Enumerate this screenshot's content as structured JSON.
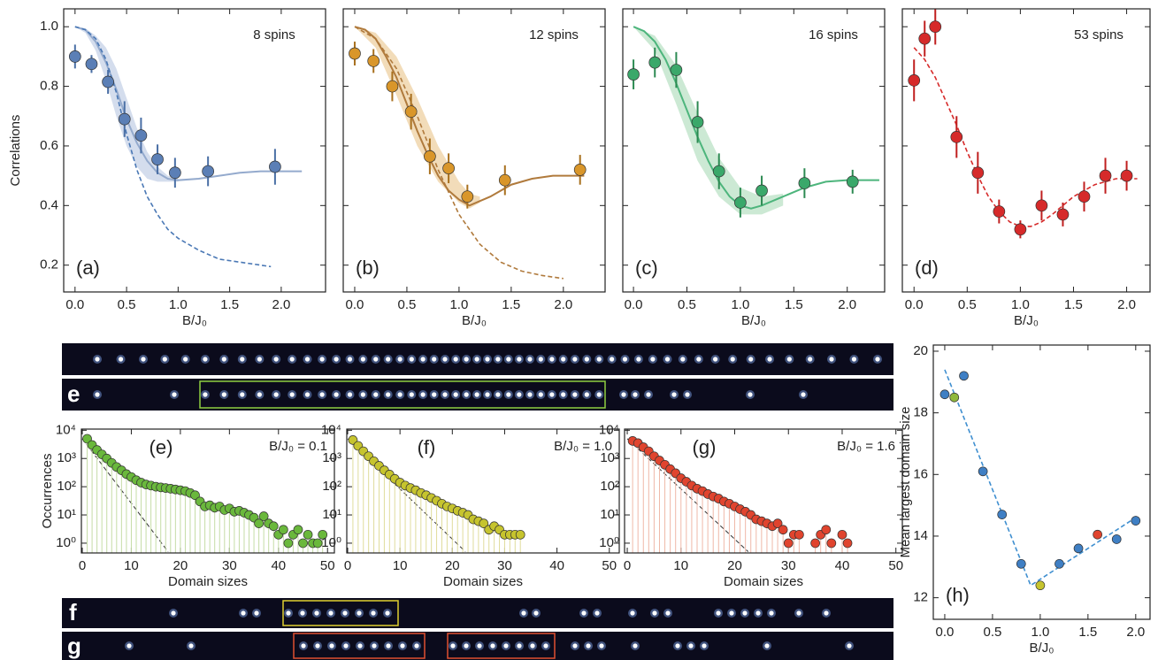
{
  "chart_data": [
    {
      "type": "scatter",
      "label": "(a)",
      "annotation": "8 spins",
      "xlabel": "B/J₀",
      "ylabel": "Correlations",
      "xlim": [
        -0.11,
        2.43
      ],
      "ylim": [
        0.11,
        1.06
      ],
      "xticks": [
        {
          "value": 0,
          "label": "0.0"
        },
        0.5,
        {
          "value": 1,
          "label": "1.0"
        },
        1.5,
        {
          "value": 2,
          "label": "2.0"
        }
      ],
      "yticks": [
        0.2,
        0.4,
        0.6,
        0.8,
        {
          "value": 1,
          "label": "1.0"
        }
      ],
      "color": "#5b7fb6",
      "error_color": "#4a6fa5",
      "curve_color": "#94aacd",
      "band_color": "#c9d5e8",
      "dashed_color": "#4a78b5",
      "points": {
        "x": [
          0,
          0.16,
          0.32,
          0.48,
          0.64,
          0.8,
          0.97,
          1.29,
          1.94
        ],
        "values": [
          0.9,
          0.875,
          0.815,
          0.69,
          0.635,
          0.555,
          0.51,
          0.515,
          0.53
        ],
        "errors": [
          0.04,
          0.03,
          0.04,
          0.06,
          0.06,
          0.05,
          0.05,
          0.05,
          0.06
        ]
      },
      "band": {
        "x": [
          0,
          0.1,
          0.2,
          0.3,
          0.4,
          0.5,
          0.6,
          0.7,
          0.8,
          0.9,
          1.0
        ],
        "upper": [
          1.0,
          0.995,
          0.97,
          0.93,
          0.86,
          0.76,
          0.66,
          0.58,
          0.53,
          0.5,
          0.49
        ],
        "lower": [
          1.0,
          0.98,
          0.92,
          0.82,
          0.7,
          0.6,
          0.53,
          0.49,
          0.48,
          0.48,
          0.48
        ]
      },
      "curve": {
        "x": [
          0,
          0.1,
          0.2,
          0.3,
          0.4,
          0.5,
          0.6,
          0.7,
          0.8,
          0.9,
          1.0,
          1.2,
          1.4,
          1.6,
          1.8,
          2.0,
          2.2
        ],
        "values": [
          1.0,
          0.99,
          0.95,
          0.88,
          0.79,
          0.69,
          0.61,
          0.55,
          0.51,
          0.49,
          0.485,
          0.49,
          0.5,
          0.51,
          0.515,
          0.515,
          0.515
        ]
      },
      "dashed": {
        "x": [
          0,
          0.1,
          0.2,
          0.3,
          0.4,
          0.5,
          0.6,
          0.7,
          0.8,
          0.9,
          1.0,
          1.2,
          1.4,
          1.6,
          1.9
        ],
        "values": [
          1.0,
          0.99,
          0.96,
          0.89,
          0.78,
          0.64,
          0.52,
          0.43,
          0.37,
          0.32,
          0.29,
          0.25,
          0.22,
          0.21,
          0.195
        ]
      }
    },
    {
      "type": "scatter",
      "label": "(b)",
      "annotation": "12 spins",
      "xlabel": "B/J₀",
      "xlim": [
        -0.11,
        2.4
      ],
      "ylim": [
        0.11,
        1.06
      ],
      "xticks": [
        {
          "value": 0,
          "label": "0.0"
        },
        0.5,
        {
          "value": 1,
          "label": "1.0"
        },
        1.5,
        {
          "value": 2,
          "label": "2.0"
        }
      ],
      "color": "#d9962a",
      "error_color": "#a8701e",
      "curve_color": "#b07a3c",
      "band_color": "#efd3a8",
      "dashed_color": "#b07a3c",
      "points": {
        "x": [
          0,
          0.18,
          0.36,
          0.54,
          0.72,
          0.9,
          1.08,
          1.44,
          2.16
        ],
        "values": [
          0.91,
          0.885,
          0.8,
          0.715,
          0.565,
          0.525,
          0.43,
          0.485,
          0.52
        ],
        "errors": [
          0.04,
          0.04,
          0.05,
          0.06,
          0.06,
          0.05,
          0.04,
          0.05,
          0.05
        ]
      },
      "band": {
        "x": [
          0,
          0.2,
          0.4,
          0.6,
          0.8,
          1.0,
          1.1,
          1.2
        ],
        "upper": [
          1.0,
          0.98,
          0.9,
          0.76,
          0.6,
          0.48,
          0.44,
          0.43
        ],
        "lower": [
          1.0,
          0.93,
          0.77,
          0.6,
          0.48,
          0.41,
          0.39,
          0.41
        ]
      },
      "curve": {
        "x": [
          0,
          0.1,
          0.2,
          0.3,
          0.4,
          0.5,
          0.6,
          0.7,
          0.8,
          0.9,
          1.0,
          1.1,
          1.3,
          1.5,
          1.7,
          1.9,
          2.1,
          2.2
        ],
        "values": [
          1.0,
          0.99,
          0.96,
          0.9,
          0.83,
          0.74,
          0.65,
          0.57,
          0.5,
          0.45,
          0.42,
          0.4,
          0.43,
          0.47,
          0.49,
          0.5,
          0.5,
          0.5
        ]
      },
      "dashed": {
        "x": [
          0,
          0.2,
          0.4,
          0.6,
          0.8,
          1.0,
          1.2,
          1.4,
          1.6,
          1.8,
          2.0
        ],
        "values": [
          1.0,
          0.96,
          0.86,
          0.7,
          0.52,
          0.37,
          0.27,
          0.21,
          0.18,
          0.165,
          0.155
        ]
      }
    },
    {
      "type": "scatter",
      "label": "(c)",
      "annotation": "16 spins",
      "xlabel": "B/J₀",
      "xlim": [
        -0.1,
        2.35
      ],
      "ylim": [
        0.11,
        1.06
      ],
      "xticks": [
        {
          "value": 0,
          "label": "0.0"
        },
        0.5,
        {
          "value": 1,
          "label": "1.0"
        },
        1.5,
        {
          "value": 2,
          "label": "2.0"
        }
      ],
      "color": "#3aa86a",
      "error_color": "#2c8a52",
      "curve_color": "#4db57c",
      "band_color": "#bfe3c9",
      "points": {
        "x": [
          0,
          0.2,
          0.4,
          0.6,
          0.8,
          1.0,
          1.2,
          1.6,
          2.05
        ],
        "values": [
          0.84,
          0.88,
          0.855,
          0.68,
          0.515,
          0.41,
          0.45,
          0.475,
          0.48
        ],
        "errors": [
          0.05,
          0.05,
          0.06,
          0.07,
          0.06,
          0.05,
          0.05,
          0.05,
          0.04
        ]
      },
      "band": {
        "x": [
          0,
          0.2,
          0.4,
          0.6,
          0.8,
          1.0,
          1.2,
          1.4
        ],
        "upper": [
          1.0,
          0.97,
          0.87,
          0.71,
          0.56,
          0.46,
          0.43,
          0.44
        ],
        "lower": [
          1.0,
          0.92,
          0.74,
          0.55,
          0.43,
          0.37,
          0.37,
          0.4
        ]
      },
      "curve": {
        "x": [
          0,
          0.1,
          0.2,
          0.3,
          0.4,
          0.5,
          0.6,
          0.7,
          0.8,
          0.9,
          1.0,
          1.1,
          1.2,
          1.4,
          1.6,
          1.8,
          2.0,
          2.2,
          2.3
        ],
        "values": [
          1.0,
          0.985,
          0.95,
          0.89,
          0.81,
          0.72,
          0.63,
          0.55,
          0.48,
          0.43,
          0.4,
          0.39,
          0.4,
          0.43,
          0.46,
          0.48,
          0.485,
          0.485,
          0.485
        ]
      }
    },
    {
      "type": "scatter",
      "label": "(d)",
      "annotation": "53 spins",
      "xlabel": "B/J₀",
      "xlim": [
        -0.11,
        2.22
      ],
      "ylim": [
        0.11,
        1.06
      ],
      "xticks": [
        {
          "value": 0,
          "label": "0.0"
        },
        0.5,
        {
          "value": 1,
          "label": "1.0"
        },
        1.5,
        {
          "value": 2,
          "label": "2.0"
        }
      ],
      "color": "#d62a2a",
      "error_color": "#c01f1f",
      "dashed_color": "#d62a2a",
      "points": {
        "x": [
          0,
          0.1,
          0.2,
          0.4,
          0.6,
          0.8,
          1.0,
          1.2,
          1.4,
          1.6,
          1.8,
          2.0
        ],
        "values": [
          0.82,
          0.96,
          1.0,
          0.63,
          0.51,
          0.38,
          0.32,
          0.4,
          0.37,
          0.43,
          0.5,
          0.5
        ],
        "errors": [
          0.07,
          0.06,
          0.06,
          0.07,
          0.07,
          0.04,
          0.03,
          0.05,
          0.04,
          0.05,
          0.06,
          0.05
        ]
      },
      "dashed": {
        "x": [
          0,
          0.1,
          0.2,
          0.3,
          0.4,
          0.5,
          0.6,
          0.7,
          0.8,
          0.9,
          1.0,
          1.1,
          1.2,
          1.3,
          1.4,
          1.5,
          1.6,
          1.7,
          1.8,
          1.9,
          2.0,
          2.1
        ],
        "values": [
          0.93,
          0.89,
          0.83,
          0.75,
          0.67,
          0.58,
          0.5,
          0.43,
          0.38,
          0.345,
          0.33,
          0.33,
          0.345,
          0.37,
          0.4,
          0.43,
          0.45,
          0.47,
          0.48,
          0.49,
          0.49,
          0.49
        ]
      }
    },
    {
      "type": "stem",
      "label": "(e)",
      "annotation": "B/J₀ = 0.1",
      "xlabel": "Domain sizes",
      "ylabel": "Occurrences",
      "log_y": true,
      "xlim": [
        -0.18,
        51.4
      ],
      "ylim": [
        0.45,
        11000
      ],
      "xticks": [
        0,
        10,
        20,
        30,
        40,
        50
      ],
      "yticks": [
        {
          "value": 1,
          "label": "10⁰"
        },
        {
          "value": 10,
          "label": "10¹"
        },
        {
          "value": 100,
          "label": "10²"
        },
        {
          "value": 1000,
          "label": "10³"
        },
        {
          "value": 10000,
          "label": "10⁴"
        }
      ],
      "color": "#6ab83c",
      "stem_color": "#c5dca6",
      "dashed_color": "#333333",
      "points": {
        "x": [
          1,
          2,
          3,
          4,
          5,
          6,
          7,
          8,
          9,
          10,
          11,
          12,
          13,
          14,
          15,
          16,
          17,
          18,
          19,
          20,
          21,
          22,
          23,
          24,
          25,
          26,
          27,
          28,
          29,
          30,
          31,
          32,
          33,
          34,
          35,
          36,
          37,
          38,
          39,
          40,
          41,
          42,
          43,
          44,
          45,
          46,
          47,
          48,
          49
        ],
        "values": [
          5000,
          3000,
          2000,
          1400,
          1000,
          700,
          500,
          380,
          280,
          220,
          170,
          140,
          120,
          110,
          100,
          95,
          90,
          85,
          80,
          75,
          70,
          60,
          50,
          30,
          20,
          22,
          18,
          20,
          15,
          17,
          13,
          14,
          12,
          10,
          8,
          5,
          9,
          5,
          4,
          2,
          3,
          1,
          2,
          3,
          1,
          2,
          1,
          1,
          2
        ]
      },
      "dashed": {
        "x": [
          0,
          17.5
        ],
        "values": [
          5000,
          0.5
        ]
      }
    },
    {
      "type": "stem",
      "label": "(f)",
      "annotation": "B/J₀ = 1.0",
      "xlabel": "Domain sizes",
      "log_y": true,
      "xlim": [
        -0.17,
        51.9
      ],
      "ylim": [
        0.45,
        11000
      ],
      "xticks": [
        0,
        10,
        20,
        30,
        40,
        50
      ],
      "yticks": [
        {
          "value": 1,
          "label": "10⁰"
        },
        {
          "value": 10,
          "label": "10¹"
        },
        {
          "value": 100,
          "label": "10²"
        },
        {
          "value": 1000,
          "label": "10³"
        },
        {
          "value": 10000,
          "label": "10⁴"
        }
      ],
      "color": "#c6c42e",
      "stem_color": "#e0dc9c",
      "dashed_color": "#333333",
      "points": {
        "x": [
          1,
          2,
          3,
          4,
          5,
          6,
          7,
          8,
          9,
          10,
          11,
          12,
          13,
          14,
          15,
          16,
          17,
          18,
          19,
          20,
          21,
          22,
          23,
          24,
          25,
          26,
          27,
          28,
          29,
          30,
          31,
          32,
          33
        ],
        "values": [
          4500,
          2800,
          1800,
          1200,
          800,
          550,
          380,
          270,
          190,
          140,
          110,
          90,
          75,
          60,
          50,
          40,
          32,
          25,
          20,
          17,
          14,
          12,
          10,
          7,
          6,
          5,
          3,
          4,
          3,
          2,
          2,
          2,
          2
        ]
      },
      "dashed": {
        "x": [
          0,
          22.5
        ],
        "values": [
          5000,
          0.5
        ]
      }
    },
    {
      "type": "stem",
      "label": "(g)",
      "annotation": "B/J₀ = 1.6",
      "xlabel": "Domain sizes",
      "log_y": true,
      "xlim": [
        -0.5,
        51.2
      ],
      "ylim": [
        0.45,
        11000
      ],
      "xticks": [
        0,
        10,
        20,
        30,
        40,
        50
      ],
      "yticks": [
        {
          "value": 1,
          "label": "10⁰"
        },
        {
          "value": 10,
          "label": "10¹"
        },
        {
          "value": 100,
          "label": "10²"
        },
        {
          "value": 1000,
          "label": "10³"
        },
        {
          "value": 10000,
          "label": "10⁴"
        }
      ],
      "color": "#e0442e",
      "stem_color": "#efb8a8",
      "dashed_color": "#333333",
      "points": {
        "x": [
          1,
          2,
          3,
          4,
          5,
          6,
          7,
          8,
          9,
          10,
          11,
          12,
          13,
          14,
          15,
          16,
          17,
          18,
          19,
          20,
          21,
          22,
          23,
          24,
          25,
          26,
          27,
          28,
          29,
          30,
          31,
          32,
          35,
          36,
          37,
          38,
          40,
          41
        ],
        "values": [
          4200,
          3500,
          2500,
          1800,
          1200,
          850,
          600,
          420,
          300,
          200,
          150,
          110,
          85,
          70,
          55,
          45,
          38,
          30,
          25,
          20,
          16,
          13,
          10,
          7,
          6,
          5,
          4,
          5,
          3,
          1,
          2,
          2,
          1,
          2,
          3,
          1,
          2,
          1
        ]
      },
      "dashed": {
        "x": [
          0,
          22.5
        ],
        "values": [
          5000,
          0.5
        ]
      }
    },
    {
      "type": "scatter",
      "label": "(h)",
      "xlabel": "B/J₀",
      "ylabel": "Mean largest domain size",
      "xlim": [
        -0.12,
        2.15
      ],
      "ylim": [
        11.3,
        20.2
      ],
      "xticks": [
        {
          "value": 0,
          "label": "0.0"
        },
        0.5,
        {
          "value": 1,
          "label": "1.0"
        },
        1.5,
        {
          "value": 2,
          "label": "2.0"
        }
      ],
      "yticks": [
        12,
        14,
        16,
        18,
        20
      ],
      "color": "#3f7fc4",
      "error_color": "#1f4f8a",
      "dashed_color": "#3f8fd0",
      "points": {
        "x": [
          0,
          0.1,
          0.2,
          0.4,
          0.6,
          0.8,
          1.0,
          1.2,
          1.4,
          1.6,
          1.8,
          2.0
        ],
        "values": [
          18.6,
          18.5,
          19.2,
          16.1,
          14.7,
          13.1,
          12.4,
          13.1,
          13.6,
          14.05,
          13.9,
          14.5
        ],
        "errors": [
          0.15,
          0.15,
          0.15,
          0.15,
          0.15,
          0.15,
          0.15,
          0.15,
          0.15,
          0.15,
          0.15,
          0.15
        ],
        "colors": [
          "#3f7fc4",
          "#8fb83c",
          "#3f7fc4",
          "#3f7fc4",
          "#3f7fc4",
          "#3f7fc4",
          "#c6c42e",
          "#3f7fc4",
          "#3f7fc4",
          "#e0442e",
          "#3f7fc4",
          "#3f7fc4"
        ]
      },
      "dashed": {
        "x": [
          0,
          0.9,
          2.0
        ],
        "values": [
          19.4,
          12.4,
          14.6
        ]
      }
    }
  ],
  "images": {
    "labels": [
      "e",
      "f",
      "g"
    ]
  }
}
